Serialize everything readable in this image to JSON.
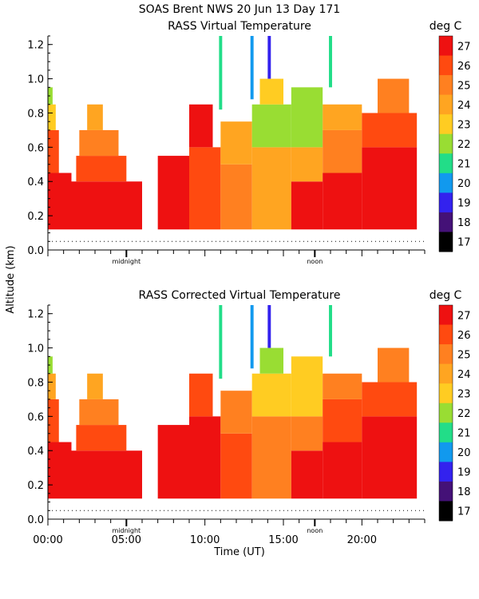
{
  "header": {
    "line1": "SOAS Brent NWS  20 Jun 13 Day 171"
  },
  "shared_axes": {
    "ylabel": "Altitude (km)",
    "xlabel": "Time (UT)",
    "x_tick_labels": [
      "00:00",
      "05:00",
      "10:00",
      "15:00",
      "20:00"
    ],
    "x_tick_values": [
      0,
      5,
      10,
      15,
      20
    ],
    "x_markers": [
      {
        "label": "midnight",
        "x": 5
      },
      {
        "label": "noon",
        "x": 17
      }
    ]
  },
  "chart_data": [
    {
      "type": "heatmap",
      "title": "RASS Virtual Temperature",
      "units_label": "deg C",
      "xlabel": "Time (UT)",
      "ylabel": "Altitude (km)",
      "xlim": [
        0,
        24
      ],
      "ylim": [
        0,
        1.25
      ],
      "y_tick_labels": [
        "0.0",
        "0.2",
        "0.4",
        "0.6",
        "0.8",
        "1.0",
        "1.2"
      ],
      "y_tick_values": [
        0,
        0.2,
        0.4,
        0.6,
        0.8,
        1.0,
        1.2
      ],
      "reference_line_y": 0.05,
      "colorbar": {
        "labels": [
          "27",
          "26",
          "25",
          "24",
          "23",
          "22",
          "21",
          "20",
          "19",
          "18",
          "17"
        ],
        "colors": [
          "#ee1111",
          "#ff4a10",
          "#ff8020",
          "#ffa521",
          "#ffcc22",
          "#99dd33",
          "#22dd88",
          "#1199ee",
          "#3322ee",
          "#441177",
          "#000000"
        ]
      },
      "cells": [
        {
          "t0": 0.0,
          "t1": 1.5,
          "h0": 0.12,
          "h1": 0.45,
          "temp": 27
        },
        {
          "t0": 0.0,
          "t1": 0.7,
          "h0": 0.45,
          "h1": 0.7,
          "temp": 26
        },
        {
          "t0": 0.0,
          "t1": 0.5,
          "h0": 0.7,
          "h1": 0.85,
          "temp": 23
        },
        {
          "t0": 0.0,
          "t1": 0.3,
          "h0": 0.85,
          "h1": 0.95,
          "temp": 22
        },
        {
          "t0": 1.5,
          "t1": 6.0,
          "h0": 0.12,
          "h1": 0.4,
          "temp": 27
        },
        {
          "t0": 1.8,
          "t1": 5.0,
          "h0": 0.4,
          "h1": 0.55,
          "temp": 26
        },
        {
          "t0": 2.0,
          "t1": 4.5,
          "h0": 0.55,
          "h1": 0.7,
          "temp": 25
        },
        {
          "t0": 2.5,
          "t1": 3.5,
          "h0": 0.7,
          "h1": 0.85,
          "temp": 24
        },
        {
          "t0": 7.0,
          "t1": 9.0,
          "h0": 0.12,
          "h1": 0.55,
          "temp": 27
        },
        {
          "t0": 9.0,
          "t1": 11.0,
          "h0": 0.12,
          "h1": 0.6,
          "temp": 26
        },
        {
          "t0": 9.0,
          "t1": 10.5,
          "h0": 0.6,
          "h1": 0.85,
          "temp": 27
        },
        {
          "t0": 11.0,
          "t1": 13.0,
          "h0": 0.12,
          "h1": 0.5,
          "temp": 25
        },
        {
          "t0": 11.0,
          "t1": 13.0,
          "h0": 0.5,
          "h1": 0.75,
          "temp": 24
        },
        {
          "t0": 13.0,
          "t1": 15.5,
          "h0": 0.12,
          "h1": 0.6,
          "temp": 24
        },
        {
          "t0": 13.0,
          "t1": 15.5,
          "h0": 0.6,
          "h1": 0.85,
          "temp": 22
        },
        {
          "t0": 13.5,
          "t1": 15.0,
          "h0": 0.85,
          "h1": 1.0,
          "temp": 23
        },
        {
          "t0": 15.5,
          "t1": 17.5,
          "h0": 0.12,
          "h1": 0.4,
          "temp": 27
        },
        {
          "t0": 15.5,
          "t1": 17.5,
          "h0": 0.4,
          "h1": 0.6,
          "temp": 24
        },
        {
          "t0": 15.5,
          "t1": 17.5,
          "h0": 0.6,
          "h1": 0.95,
          "temp": 22
        },
        {
          "t0": 17.5,
          "t1": 20.0,
          "h0": 0.12,
          "h1": 0.45,
          "temp": 27
        },
        {
          "t0": 17.5,
          "t1": 20.0,
          "h0": 0.45,
          "h1": 0.7,
          "temp": 25
        },
        {
          "t0": 17.5,
          "t1": 20.0,
          "h0": 0.7,
          "h1": 0.85,
          "temp": 24
        },
        {
          "t0": 20.0,
          "t1": 23.5,
          "h0": 0.12,
          "h1": 0.6,
          "temp": 27
        },
        {
          "t0": 20.0,
          "t1": 23.5,
          "h0": 0.6,
          "h1": 0.8,
          "temp": 26
        },
        {
          "t0": 21.0,
          "t1": 23.0,
          "h0": 0.8,
          "h1": 1.0,
          "temp": 25
        },
        {
          "t0": 10.9,
          "t1": 11.1,
          "h0": 0.82,
          "h1": 1.25,
          "temp": 21
        },
        {
          "t0": 12.9,
          "t1": 13.1,
          "h0": 0.88,
          "h1": 1.25,
          "temp": 20
        },
        {
          "t0": 14.0,
          "t1": 14.2,
          "h0": 1.0,
          "h1": 1.25,
          "temp": 19
        },
        {
          "t0": 17.9,
          "t1": 18.1,
          "h0": 0.95,
          "h1": 1.25,
          "temp": 21
        }
      ]
    },
    {
      "type": "heatmap",
      "title": "RASS Corrected Virtual Temperature",
      "units_label": "deg C",
      "xlabel": "Time (UT)",
      "ylabel": "Altitude (km)",
      "xlim": [
        0,
        24
      ],
      "ylim": [
        0,
        1.25
      ],
      "y_tick_labels": [
        "0.0",
        "0.2",
        "0.4",
        "0.6",
        "0.8",
        "1.0",
        "1.2"
      ],
      "y_tick_values": [
        0,
        0.2,
        0.4,
        0.6,
        0.8,
        1.0,
        1.2
      ],
      "reference_line_y": 0.05,
      "colorbar": {
        "labels": [
          "27",
          "26",
          "25",
          "24",
          "23",
          "22",
          "21",
          "20",
          "19",
          "18",
          "17"
        ],
        "colors": [
          "#ee1111",
          "#ff4a10",
          "#ff8020",
          "#ffa521",
          "#ffcc22",
          "#99dd33",
          "#22dd88",
          "#1199ee",
          "#3322ee",
          "#441177",
          "#000000"
        ]
      },
      "cells": [
        {
          "t0": 0.0,
          "t1": 1.5,
          "h0": 0.12,
          "h1": 0.45,
          "temp": 27
        },
        {
          "t0": 0.0,
          "t1": 0.7,
          "h0": 0.45,
          "h1": 0.7,
          "temp": 26
        },
        {
          "t0": 0.0,
          "t1": 0.5,
          "h0": 0.7,
          "h1": 0.85,
          "temp": 24
        },
        {
          "t0": 0.0,
          "t1": 0.3,
          "h0": 0.85,
          "h1": 0.95,
          "temp": 22
        },
        {
          "t0": 1.5,
          "t1": 6.0,
          "h0": 0.12,
          "h1": 0.4,
          "temp": 27
        },
        {
          "t0": 1.8,
          "t1": 5.0,
          "h0": 0.4,
          "h1": 0.55,
          "temp": 26
        },
        {
          "t0": 2.0,
          "t1": 4.5,
          "h0": 0.55,
          "h1": 0.7,
          "temp": 25
        },
        {
          "t0": 2.5,
          "t1": 3.5,
          "h0": 0.7,
          "h1": 0.85,
          "temp": 24
        },
        {
          "t0": 7.0,
          "t1": 9.0,
          "h0": 0.12,
          "h1": 0.55,
          "temp": 27
        },
        {
          "t0": 9.0,
          "t1": 11.0,
          "h0": 0.12,
          "h1": 0.6,
          "temp": 27
        },
        {
          "t0": 9.0,
          "t1": 10.5,
          "h0": 0.6,
          "h1": 0.85,
          "temp": 26
        },
        {
          "t0": 11.0,
          "t1": 13.0,
          "h0": 0.12,
          "h1": 0.5,
          "temp": 26
        },
        {
          "t0": 11.0,
          "t1": 13.0,
          "h0": 0.5,
          "h1": 0.75,
          "temp": 25
        },
        {
          "t0": 13.0,
          "t1": 15.5,
          "h0": 0.12,
          "h1": 0.6,
          "temp": 25
        },
        {
          "t0": 13.0,
          "t1": 15.5,
          "h0": 0.6,
          "h1": 0.85,
          "temp": 23
        },
        {
          "t0": 13.5,
          "t1": 15.0,
          "h0": 0.85,
          "h1": 1.0,
          "temp": 22
        },
        {
          "t0": 15.5,
          "t1": 17.5,
          "h0": 0.12,
          "h1": 0.4,
          "temp": 27
        },
        {
          "t0": 15.5,
          "t1": 17.5,
          "h0": 0.4,
          "h1": 0.6,
          "temp": 25
        },
        {
          "t0": 15.5,
          "t1": 17.5,
          "h0": 0.6,
          "h1": 0.95,
          "temp": 23
        },
        {
          "t0": 17.5,
          "t1": 20.0,
          "h0": 0.12,
          "h1": 0.45,
          "temp": 27
        },
        {
          "t0": 17.5,
          "t1": 20.0,
          "h0": 0.45,
          "h1": 0.7,
          "temp": 26
        },
        {
          "t0": 17.5,
          "t1": 20.0,
          "h0": 0.7,
          "h1": 0.85,
          "temp": 25
        },
        {
          "t0": 20.0,
          "t1": 23.5,
          "h0": 0.12,
          "h1": 0.6,
          "temp": 27
        },
        {
          "t0": 20.0,
          "t1": 23.5,
          "h0": 0.6,
          "h1": 0.8,
          "temp": 26
        },
        {
          "t0": 21.0,
          "t1": 23.0,
          "h0": 0.8,
          "h1": 1.0,
          "temp": 25
        },
        {
          "t0": 10.9,
          "t1": 11.1,
          "h0": 0.82,
          "h1": 1.25,
          "temp": 21
        },
        {
          "t0": 12.9,
          "t1": 13.1,
          "h0": 0.88,
          "h1": 1.25,
          "temp": 20
        },
        {
          "t0": 14.0,
          "t1": 14.2,
          "h0": 1.0,
          "h1": 1.25,
          "temp": 19
        },
        {
          "t0": 17.9,
          "t1": 18.1,
          "h0": 0.95,
          "h1": 1.25,
          "temp": 21
        }
      ]
    }
  ]
}
